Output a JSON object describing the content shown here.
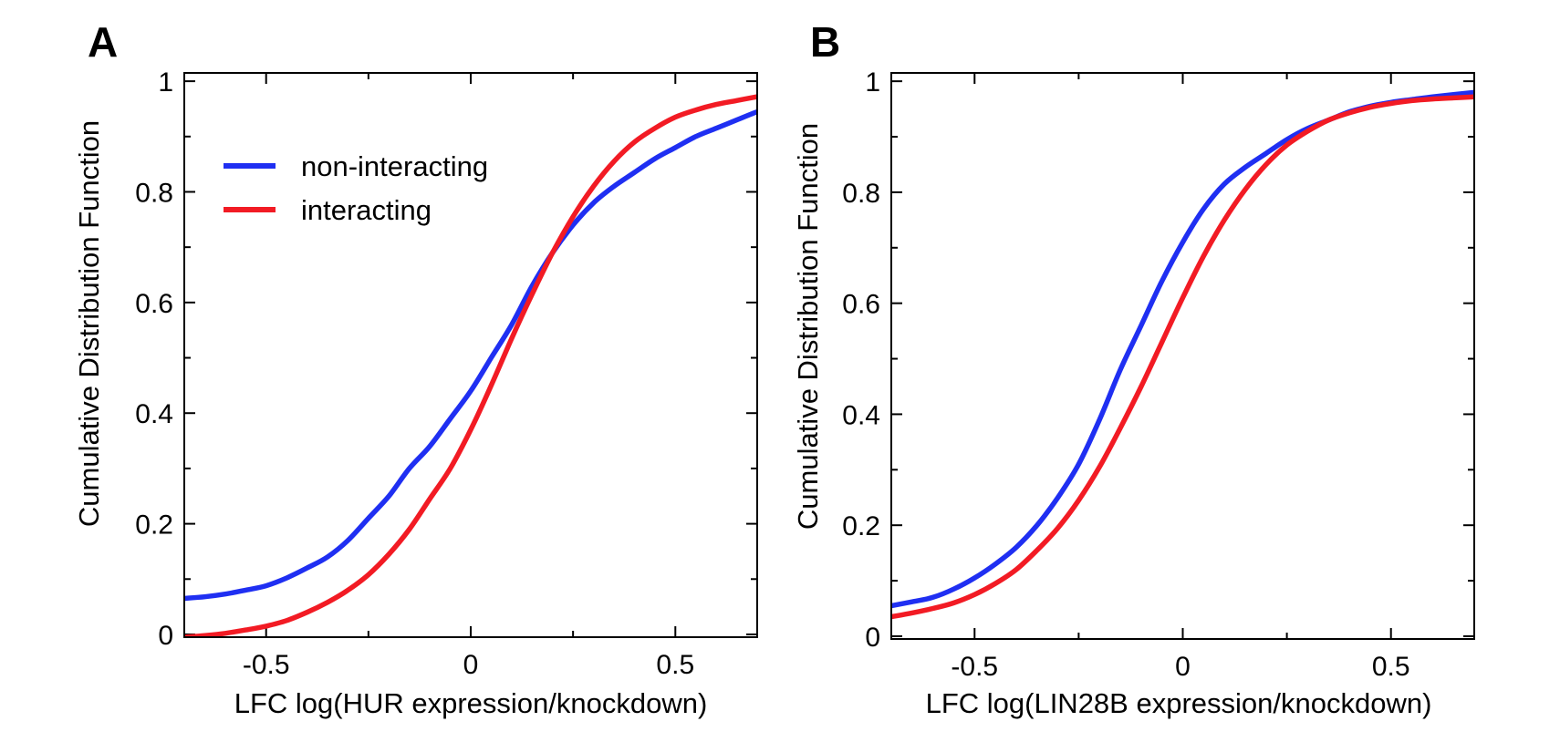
{
  "colors": {
    "non_interacting": "#1f2ff2",
    "interacting": "#f21b24"
  },
  "chart_data": [
    {
      "type": "line",
      "panel_label": "A",
      "title": "",
      "xlabel": "LFC log(HUR expression/knockdown)",
      "ylabel": "Cumulative Distribution Function",
      "xlim": [
        -0.7,
        0.7
      ],
      "ylim": [
        -0.005,
        1.015
      ],
      "xticks": [
        -0.5,
        0,
        0.5
      ],
      "xtick_labels": [
        "-0.5",
        "0",
        "0.5"
      ],
      "yticks": [
        0,
        0.2,
        0.4,
        0.6,
        0.8,
        1
      ],
      "ytick_labels": [
        "0",
        "0.2",
        "0.4",
        "0.6",
        "0.8",
        "1"
      ],
      "grid": false,
      "legend": "upper-left",
      "series": [
        {
          "name": "non-interacting",
          "color": "#1f2ff2",
          "x": [
            -0.7,
            -0.65,
            -0.6,
            -0.55,
            -0.5,
            -0.45,
            -0.4,
            -0.35,
            -0.3,
            -0.25,
            -0.2,
            -0.15,
            -0.1,
            -0.05,
            0.0,
            0.05,
            0.1,
            0.15,
            0.2,
            0.25,
            0.3,
            0.35,
            0.4,
            0.45,
            0.5,
            0.55,
            0.6,
            0.65,
            0.7
          ],
          "y": [
            0.065,
            0.068,
            0.073,
            0.08,
            0.088,
            0.102,
            0.12,
            0.14,
            0.17,
            0.21,
            0.25,
            0.3,
            0.34,
            0.39,
            0.44,
            0.5,
            0.56,
            0.63,
            0.69,
            0.74,
            0.78,
            0.81,
            0.835,
            0.86,
            0.88,
            0.9,
            0.915,
            0.93,
            0.945
          ]
        },
        {
          "name": "interacting",
          "color": "#f21b24",
          "x": [
            -0.7,
            -0.65,
            -0.6,
            -0.55,
            -0.5,
            -0.45,
            -0.4,
            -0.35,
            -0.3,
            -0.25,
            -0.2,
            -0.15,
            -0.1,
            -0.05,
            0.0,
            0.05,
            0.1,
            0.15,
            0.2,
            0.25,
            0.3,
            0.35,
            0.4,
            0.45,
            0.5,
            0.55,
            0.6,
            0.65,
            0.7
          ],
          "y": [
            -0.005,
            -0.002,
            0.002,
            0.008,
            0.015,
            0.025,
            0.04,
            0.058,
            0.08,
            0.108,
            0.145,
            0.19,
            0.245,
            0.3,
            0.37,
            0.45,
            0.535,
            0.615,
            0.69,
            0.755,
            0.81,
            0.855,
            0.89,
            0.915,
            0.935,
            0.948,
            0.958,
            0.965,
            0.972
          ]
        }
      ]
    },
    {
      "type": "line",
      "panel_label": "B",
      "title": "",
      "xlabel": "LFC log(LIN28B expression/knockdown)",
      "ylabel": "Cumulative Distribution Function",
      "xlim": [
        -0.7,
        0.7
      ],
      "ylim": [
        -0.005,
        1.015
      ],
      "xticks": [
        -0.5,
        0,
        0.5
      ],
      "xtick_labels": [
        "-0.5",
        "0",
        "0.5"
      ],
      "yticks": [
        0,
        0.2,
        0.4,
        0.6,
        0.8,
        1
      ],
      "ytick_labels": [
        "0",
        "0.2",
        "0.4",
        "0.6",
        "0.8",
        "1"
      ],
      "grid": false,
      "legend": "none",
      "series": [
        {
          "name": "non-interacting",
          "color": "#1f2ff2",
          "x": [
            -0.7,
            -0.65,
            -0.6,
            -0.55,
            -0.5,
            -0.45,
            -0.4,
            -0.35,
            -0.3,
            -0.25,
            -0.2,
            -0.15,
            -0.1,
            -0.05,
            0.0,
            0.05,
            0.1,
            0.15,
            0.2,
            0.25,
            0.3,
            0.35,
            0.4,
            0.45,
            0.5,
            0.55,
            0.6,
            0.65,
            0.7
          ],
          "y": [
            0.055,
            0.062,
            0.07,
            0.085,
            0.105,
            0.13,
            0.16,
            0.2,
            0.25,
            0.31,
            0.39,
            0.48,
            0.56,
            0.64,
            0.71,
            0.77,
            0.815,
            0.845,
            0.87,
            0.895,
            0.915,
            0.93,
            0.945,
            0.955,
            0.962,
            0.967,
            0.972,
            0.976,
            0.98
          ]
        },
        {
          "name": "interacting",
          "color": "#f21b24",
          "x": [
            -0.7,
            -0.65,
            -0.6,
            -0.55,
            -0.5,
            -0.45,
            -0.4,
            -0.35,
            -0.3,
            -0.25,
            -0.2,
            -0.15,
            -0.1,
            -0.05,
            0.0,
            0.05,
            0.1,
            0.15,
            0.2,
            0.25,
            0.3,
            0.35,
            0.4,
            0.45,
            0.5,
            0.55,
            0.6,
            0.65,
            0.7
          ],
          "y": [
            0.035,
            0.042,
            0.05,
            0.06,
            0.075,
            0.095,
            0.12,
            0.155,
            0.195,
            0.245,
            0.305,
            0.375,
            0.45,
            0.53,
            0.61,
            0.685,
            0.75,
            0.805,
            0.85,
            0.885,
            0.91,
            0.93,
            0.943,
            0.953,
            0.96,
            0.965,
            0.968,
            0.97,
            0.972
          ]
        }
      ]
    }
  ]
}
